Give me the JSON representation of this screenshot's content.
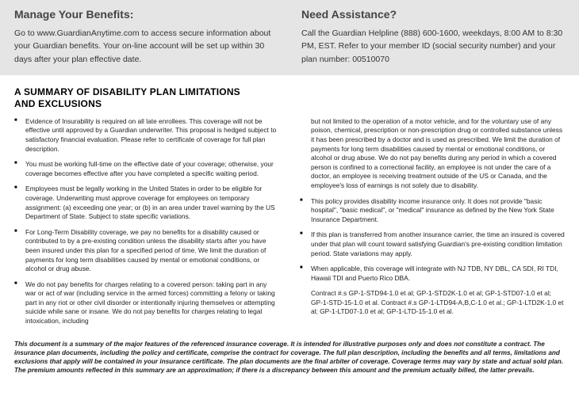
{
  "header": {
    "left": {
      "title": "Manage Your Benefits:",
      "text": "Go to www.GuardianAnytime.com to access secure information about your Guardian benefits. Your on-line account will be set up within 30 days after your plan effective date."
    },
    "right": {
      "title": "Need Assistance?",
      "text": "Call the Guardian Helpline (888) 600-1600, weekdays, 8:00 AM to 8:30 PM, EST. Refer to your member ID (social security number) and your plan number: 00510070"
    }
  },
  "section_title_1": "A SUMMARY OF  DISABILITY PLAN LIMITATIONS",
  "section_title_2": "AND EXCLUSIONS",
  "left_items": [
    "Evidence of Insurability is required on all late enrollees. This coverage will not be effective until approved by a Guardian underwriter.  This proposal is hedged subject to satisfactory financial evaluation. Please refer to certificate of coverage for full plan description.",
    "You must be working full-time on the effective date of your coverage; otherwise, your coverage becomes effective after you have completed a specific waiting period.",
    "Employees must be legally working in the United States in order to be eligible for coverage. Underwriting must approve coverage for employees on temporary assignment: (a) exceeding one year; or (b) in an area under travel warning by the US Department of State. Subject to state specific variations.",
    "For Long-Term Disability coverage, we pay no benefits for a disability caused or contributed to by a pre-existing condition unless the disability starts after you have been insured under this plan for a specified period of time. We limit the duration of payments for long term disabilities caused by mental or emotional conditions, or alcohol or drug abuse.",
    "We do not pay benefits for charges relating to a covered person: taking part in any war or act of war (including service in the armed forces) committing a felony or taking part in any riot or other civil disorder or intentionally injuring themselves or attempting suicide while sane or insane. We do not pay benefits for charges relating to legal intoxication, including"
  ],
  "right_items": [
    {
      "nobullet": true,
      "text": "but not limited to the operation of a motor vehicle, and for the voluntary use of any poison, chemical, prescription or non-prescription drug or controlled substance unless it has been prescribed by a doctor and is used as prescribed.  We limit the duration of payments for long term disabilities caused by mental or emotional conditions, or alcohol or drug abuse.  We do not pay benefits during any period in which a covered person is confined to a correctional facility, an employee is not under the care of a doctor, an employee is receiving treatment outside of the US or Canada, and the employee's loss of earnings is not solely due to disability."
    },
    {
      "nobullet": false,
      "text": "This policy provides disability income insurance only. It does not provide \"basic hospital\", \"basic medical\", or \"medical\" insurance as defined by the New York State Insurance Department."
    },
    {
      "nobullet": false,
      "text": "If this plan is transferred from another insurance carrier, the time an insured is covered under that plan will count toward satisfying Guardian's pre-existing condition limitation period.  State variations may apply."
    },
    {
      "nobullet": false,
      "text": "When applicable, this coverage will integrate with NJ TDB, NY DBL, CA SDI, RI TDI, Hawaii TDI and Puerto Rico DBA."
    },
    {
      "nobullet": true,
      "text": "Contract #.s GP-1-STD94-1.0 et al; GP-1-STD2K-1.0 et al; GP-1-STD07-1.0 et al; GP-1-STD-15-1.0 et al.  Contract #.s GP-1-LTD94-A,B,C-1.0 et al.;  GP-1-LTD2K-1.0 et al; GP-1-LTD07-1.0 et al; GP-1-LTD-15-1.0 et al."
    }
  ],
  "footer": "This document is a summary of the major features of the referenced insurance coverage.  It is intended for illustrative purposes only and does not constitute a contract. The insurance plan documents, including the policy and certificate, comprise the contract for coverage. The full plan description, including the benefits and all terms, limitations and exclusions that apply will be contained in your insurance certificate. The plan documents are the final arbiter of coverage.  Coverage terms may vary by state and actual sold plan. The premium amounts reflected in this summary are an approximation; if there is a discrepancy between this amount and the premium actually billed, the latter prevails."
}
